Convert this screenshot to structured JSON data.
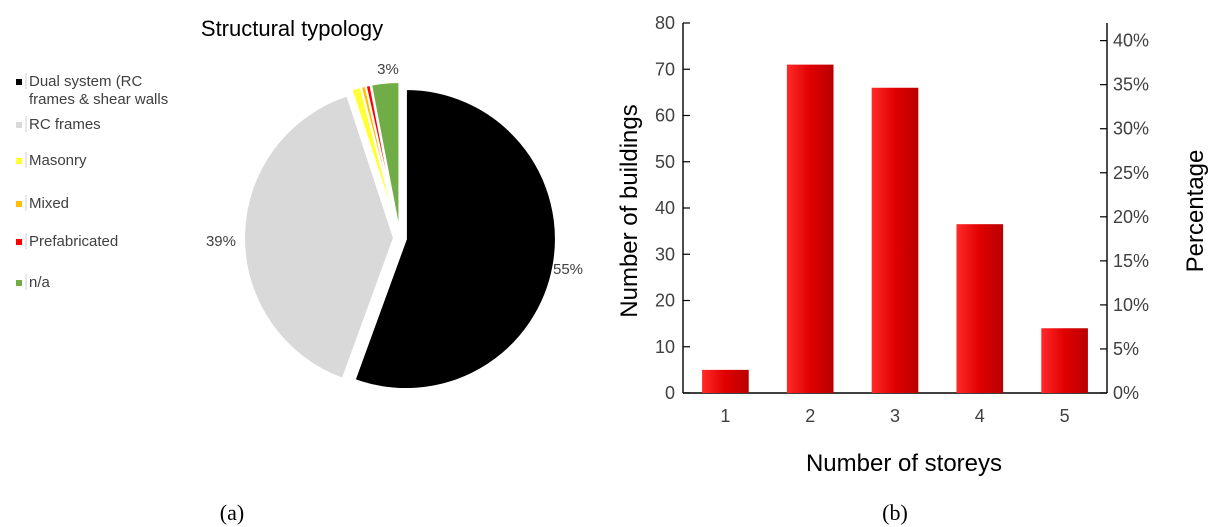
{
  "chart_data": [
    {
      "type": "pie",
      "title": "Structural typology",
      "panel_label": "(a)",
      "legend": {
        "placement": "left"
      },
      "slices": [
        {
          "label": "Dual system (RC frames & shear walls",
          "value": 55,
          "value_label": "55%",
          "color": "#000000",
          "explode": true
        },
        {
          "label": "RC frames",
          "value": 39,
          "value_label": "39%",
          "color": "#d9d9d9",
          "explode": true
        },
        {
          "label": "Masonry",
          "value": 1,
          "value_label": "",
          "color": "#ffff33",
          "explode": true
        },
        {
          "label": "Mixed",
          "value": 0.5,
          "value_label": "",
          "color": "#ffc000",
          "explode": true
        },
        {
          "label": "Prefabricated",
          "value": 0.5,
          "value_label": "",
          "color": "#ff0000",
          "explode": true
        },
        {
          "label": "n/a",
          "value": 3,
          "value_label": "3%",
          "color": "#70ad47",
          "explode": true
        }
      ]
    },
    {
      "type": "bar",
      "panel_label": "(b)",
      "xlabel": "Number of storeys",
      "ylabel": "Number of buildings",
      "y2label": "Percentage",
      "categories": [
        "1",
        "2",
        "3",
        "4",
        "5"
      ],
      "values": [
        5,
        71,
        66,
        36.5,
        14
      ],
      "ylim": [
        0,
        80
      ],
      "yticks": [
        0,
        10,
        20,
        30,
        40,
        50,
        60,
        70,
        80
      ],
      "y2lim": [
        0,
        42
      ],
      "y2ticks": [
        "0%",
        "5%",
        "10%",
        "15%",
        "20%",
        "25%",
        "30%",
        "35%",
        "40%"
      ],
      "y2tick_values": [
        0,
        5,
        10,
        15,
        20,
        25,
        30,
        35,
        40
      ],
      "bar_color": "#e00000",
      "grid": false
    }
  ]
}
